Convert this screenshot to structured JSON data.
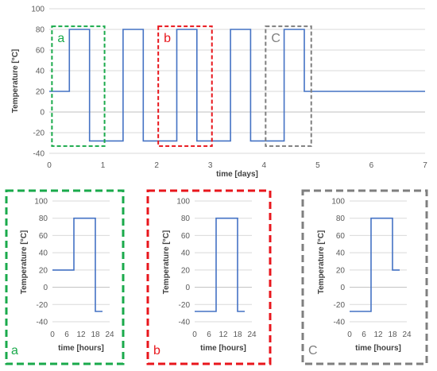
{
  "colors": {
    "line": "#4472c4",
    "green": "#1aaa4b",
    "red": "#e8161c",
    "gray": "#7f7f7f",
    "grid": "#d9d9d9",
    "axis": "#bfbfbf"
  },
  "chart_data": [
    {
      "type": "line",
      "xlabel": "time [days]",
      "ylabel": "Temperature [°C]",
      "xlim": [
        0,
        7
      ],
      "ylim": [
        -40,
        100
      ],
      "xticks": [
        "0",
        "1",
        "2",
        "3",
        "4",
        "5",
        "6",
        "7"
      ],
      "yticks": [
        "-40",
        "-20",
        "0",
        "20",
        "40",
        "60",
        "80",
        "100"
      ],
      "grid": "horizontal",
      "series": [
        {
          "x": [
            0,
            0.375,
            0.375,
            0.75,
            0.75,
            1.375,
            1.375,
            1.75,
            1.75,
            2.375,
            2.375,
            2.75,
            2.75,
            3.375,
            3.375,
            3.75,
            3.75,
            4.375,
            4.375,
            4.75,
            4.75,
            7
          ],
          "y": [
            20,
            20,
            80,
            80,
            -28,
            -28,
            80,
            80,
            -28,
            -28,
            80,
            80,
            -28,
            -28,
            80,
            80,
            -28,
            -28,
            80,
            80,
            20,
            20
          ]
        }
      ],
      "annotations": [
        {
          "label": "a",
          "color": "green",
          "x_range": [
            0.05,
            1.03
          ],
          "y_range": [
            -33,
            83
          ]
        },
        {
          "label": "b",
          "color": "red",
          "x_range": [
            2.03,
            3.03
          ],
          "y_range": [
            -33,
            83
          ]
        },
        {
          "label": "C",
          "color": "gray",
          "x_range": [
            4.03,
            4.88
          ],
          "y_range": [
            -33,
            83
          ]
        }
      ]
    },
    {
      "type": "line",
      "panel_label": "a",
      "frame_color": "green",
      "xlabel": "time [hours]",
      "ylabel": "Temperature [°C]",
      "xlim": [
        0,
        24
      ],
      "ylim": [
        -40,
        100
      ],
      "xticks": [
        "0",
        "6",
        "12",
        "18",
        "24"
      ],
      "yticks": [
        "-40",
        "-20",
        "0",
        "20",
        "40",
        "60",
        "80",
        "100"
      ],
      "grid": "horizontal",
      "series": [
        {
          "x": [
            0,
            9,
            9,
            18,
            18,
            21
          ],
          "y": [
            20,
            20,
            80,
            80,
            -28,
            -28
          ]
        }
      ]
    },
    {
      "type": "line",
      "panel_label": "b",
      "frame_color": "red",
      "xlabel": "time [hours]",
      "ylabel": "Temperature [°C]",
      "xlim": [
        0,
        24
      ],
      "ylim": [
        -40,
        100
      ],
      "xticks": [
        "0",
        "6",
        "12",
        "18",
        "24"
      ],
      "yticks": [
        "-40",
        "-20",
        "0",
        "20",
        "40",
        "60",
        "80",
        "100"
      ],
      "grid": "horizontal",
      "series": [
        {
          "x": [
            0,
            9,
            9,
            18,
            18,
            21
          ],
          "y": [
            -28,
            -28,
            80,
            80,
            -28,
            -28
          ]
        }
      ]
    },
    {
      "type": "line",
      "panel_label": "C",
      "frame_color": "gray",
      "xlabel": "time [hours]",
      "ylabel": "Temperature [°C]",
      "xlim": [
        0,
        24
      ],
      "ylim": [
        -40,
        100
      ],
      "xticks": [
        "0",
        "6",
        "12",
        "18",
        "24"
      ],
      "yticks": [
        "-40",
        "-20",
        "0",
        "20",
        "40",
        "60",
        "80",
        "100"
      ],
      "grid": "horizontal",
      "series": [
        {
          "x": [
            0,
            9,
            9,
            18,
            18,
            21
          ],
          "y": [
            -28,
            -28,
            80,
            80,
            20,
            20
          ]
        }
      ]
    }
  ]
}
